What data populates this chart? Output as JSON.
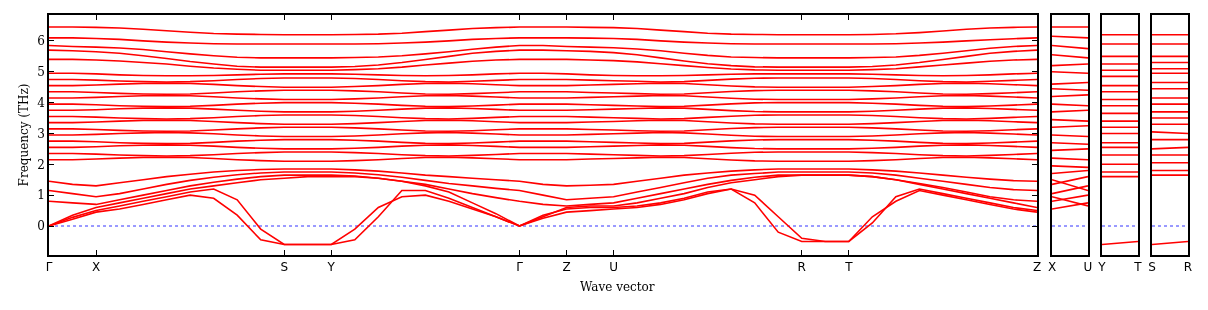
{
  "chart_data": [
    {
      "type": "line",
      "xlabel": "Wave vector",
      "ylabel": "Frequency (THz)",
      "categories": [
        "Γ",
        null,
        "X",
        null,
        null,
        null,
        null,
        null,
        null,
        null,
        "S",
        null,
        "Y",
        null,
        null,
        null,
        null,
        null,
        null,
        null,
        "Γ",
        null,
        "Z",
        null,
        "U",
        null,
        null,
        null,
        null,
        null,
        null,
        null,
        "R",
        null,
        "T",
        null,
        null,
        null,
        null,
        null,
        null,
        null,
        "Z"
      ],
      "ylim": [
        -0.94,
        6.84
      ],
      "yticks": [
        0,
        1,
        2,
        3,
        4,
        5,
        6
      ],
      "ref_lines": [
        {
          "axis": "y",
          "value": 0,
          "color": "#0000ff",
          "line_style": "dotted"
        }
      ],
      "series": [
        {
          "color": "#ff0000",
          "values": [
            0,
            0.22,
            0.45,
            0.55,
            0.7,
            0.85,
            1.0,
            0.9,
            0.35,
            -0.45,
            -0.6,
            -0.6,
            -0.6,
            -0.1,
            0.6,
            0.95,
            1.0,
            0.8,
            0.55,
            0.3,
            0,
            0.25,
            0.45,
            0.5,
            0.55,
            0.6,
            0.7,
            0.85,
            1.05,
            1.2,
            0.75,
            -0.2,
            -0.5,
            -0.5,
            -0.5,
            0.3,
            0.8,
            1.15,
            1.0,
            0.85,
            0.7,
            0.55,
            0.45
          ]
        },
        {
          "color": "#ff0000",
          "values": [
            0,
            0.28,
            0.5,
            0.65,
            0.8,
            0.95,
            1.1,
            1.2,
            0.85,
            -0.1,
            -0.6,
            -0.6,
            -0.6,
            -0.45,
            0.3,
            1.15,
            1.15,
            0.9,
            0.6,
            0.3,
            0,
            0.35,
            0.55,
            0.6,
            0.6,
            0.65,
            0.75,
            0.9,
            1.1,
            1.2,
            1.0,
            0.3,
            -0.4,
            -0.5,
            -0.5,
            0.1,
            0.95,
            1.2,
            1.05,
            0.9,
            0.75,
            0.6,
            0.5
          ]
        },
        {
          "color": "#ff0000",
          "values": [
            0,
            0.35,
            0.6,
            0.75,
            0.9,
            1.05,
            1.2,
            1.3,
            1.4,
            1.5,
            1.55,
            1.6,
            1.6,
            1.6,
            1.55,
            1.45,
            1.3,
            1.1,
            0.75,
            0.4,
            0,
            0.3,
            0.6,
            0.65,
            0.65,
            0.75,
            0.9,
            1.05,
            1.25,
            1.4,
            1.5,
            1.6,
            1.65,
            1.65,
            1.65,
            1.6,
            1.5,
            1.35,
            1.2,
            1.05,
            0.9,
            0.75,
            0.6
          ]
        },
        {
          "color": "#ff0000",
          "values": [
            6.45,
            6.45,
            6.44,
            6.42,
            6.38,
            6.33,
            6.28,
            6.24,
            6.22,
            6.21,
            6.2,
            6.2,
            6.2,
            6.21,
            6.22,
            6.25,
            6.3,
            6.35,
            6.4,
            6.43,
            6.45,
            6.45,
            6.45,
            6.44,
            6.43,
            6.4,
            6.35,
            6.3,
            6.25,
            6.22,
            6.21,
            6.2,
            6.2,
            6.2,
            6.2,
            6.21,
            6.23,
            6.27,
            6.32,
            6.38,
            6.42,
            6.44,
            6.45
          ]
        },
        {
          "color": "#ff0000",
          "values": [
            6.1,
            6.1,
            6.08,
            6.05,
            6.0,
            5.96,
            5.93,
            5.91,
            5.9,
            5.9,
            5.9,
            5.9,
            5.9,
            5.9,
            5.91,
            5.93,
            5.96,
            6.0,
            6.05,
            6.08,
            6.1,
            6.1,
            6.1,
            6.09,
            6.08,
            6.05,
            6.0,
            5.96,
            5.93,
            5.91,
            5.9,
            5.9,
            5.9,
            5.9,
            5.9,
            5.9,
            5.91,
            5.93,
            5.96,
            6.0,
            6.04,
            6.07,
            6.1
          ]
        },
        {
          "color": "#ff0000",
          "values": [
            5.85,
            5.82,
            5.8,
            5.77,
            5.72,
            5.65,
            5.58,
            5.52,
            5.47,
            5.45,
            5.45,
            5.45,
            5.45,
            5.46,
            5.48,
            5.52,
            5.58,
            5.65,
            5.73,
            5.8,
            5.85,
            5.85,
            5.82,
            5.8,
            5.78,
            5.74,
            5.68,
            5.6,
            5.53,
            5.48,
            5.46,
            5.45,
            5.45,
            5.45,
            5.45,
            5.46,
            5.48,
            5.53,
            5.6,
            5.68,
            5.76,
            5.82,
            5.85
          ]
        },
        {
          "color": "#ff0000",
          "values": [
            5.7,
            5.68,
            5.65,
            5.6,
            5.52,
            5.43,
            5.33,
            5.25,
            5.18,
            5.15,
            5.15,
            5.15,
            5.15,
            5.17,
            5.22,
            5.3,
            5.4,
            5.5,
            5.6,
            5.66,
            5.7,
            5.7,
            5.68,
            5.66,
            5.62,
            5.55,
            5.45,
            5.35,
            5.26,
            5.2,
            5.16,
            5.15,
            5.15,
            5.15,
            5.15,
            5.17,
            5.22,
            5.3,
            5.4,
            5.5,
            5.6,
            5.66,
            5.7
          ]
        },
        {
          "color": "#ff0000",
          "values": [
            5.4,
            5.4,
            5.38,
            5.35,
            5.3,
            5.25,
            5.18,
            5.12,
            5.08,
            5.05,
            5.05,
            5.05,
            5.05,
            5.07,
            5.1,
            5.15,
            5.22,
            5.28,
            5.34,
            5.38,
            5.4,
            5.4,
            5.4,
            5.38,
            5.36,
            5.32,
            5.26,
            5.2,
            5.14,
            5.09,
            5.06,
            5.05,
            5.05,
            5.05,
            5.05,
            5.07,
            5.1,
            5.16,
            5.22,
            5.28,
            5.34,
            5.38,
            5.4
          ]
        },
        {
          "color": "#ff0000",
          "values": [
            4.95,
            4.95,
            4.93,
            4.9,
            4.88,
            4.87,
            4.87,
            4.88,
            4.9,
            4.92,
            4.93,
            4.93,
            4.93,
            4.92,
            4.9,
            4.88,
            4.87,
            4.88,
            4.9,
            4.93,
            4.95,
            4.95,
            4.93,
            4.9,
            4.88,
            4.87,
            4.87,
            4.88,
            4.9,
            4.92,
            4.93,
            4.93,
            4.93,
            4.93,
            4.93,
            4.92,
            4.9,
            4.88,
            4.87,
            4.88,
            4.9,
            4.93,
            4.95
          ]
        },
        {
          "color": "#ff0000",
          "values": [
            4.75,
            4.75,
            4.73,
            4.7,
            4.68,
            4.67,
            4.68,
            4.71,
            4.75,
            4.78,
            4.8,
            4.8,
            4.8,
            4.78,
            4.75,
            4.71,
            4.68,
            4.67,
            4.69,
            4.72,
            4.75,
            4.75,
            4.75,
            4.73,
            4.71,
            4.69,
            4.67,
            4.68,
            4.72,
            4.76,
            4.79,
            4.8,
            4.8,
            4.8,
            4.8,
            4.78,
            4.75,
            4.71,
            4.68,
            4.67,
            4.69,
            4.72,
            4.75
          ]
        },
        {
          "color": "#ff0000",
          "values": [
            4.55,
            4.55,
            4.57,
            4.6,
            4.62,
            4.63,
            4.62,
            4.59,
            4.55,
            4.52,
            4.5,
            4.5,
            4.5,
            4.52,
            4.55,
            4.59,
            4.62,
            4.63,
            4.61,
            4.58,
            4.55,
            4.55,
            4.55,
            4.57,
            4.59,
            4.61,
            4.63,
            4.62,
            4.58,
            4.54,
            4.51,
            4.5,
            4.5,
            4.5,
            4.5,
            4.52,
            4.55,
            4.59,
            4.62,
            4.63,
            4.61,
            4.58,
            4.55
          ]
        },
        {
          "color": "#ff0000",
          "values": [
            4.35,
            4.35,
            4.33,
            4.3,
            4.28,
            4.27,
            4.28,
            4.31,
            4.35,
            4.38,
            4.4,
            4.4,
            4.4,
            4.38,
            4.35,
            4.31,
            4.28,
            4.27,
            4.29,
            4.32,
            4.35,
            4.35,
            4.35,
            4.33,
            4.31,
            4.29,
            4.27,
            4.28,
            4.32,
            4.36,
            4.39,
            4.4,
            4.4,
            4.4,
            4.4,
            4.38,
            4.35,
            4.31,
            4.28,
            4.27,
            4.29,
            4.32,
            4.35
          ]
        },
        {
          "color": "#ff0000",
          "values": [
            4.15,
            4.15,
            4.17,
            4.2,
            4.22,
            4.23,
            4.22,
            4.19,
            4.15,
            4.12,
            4.1,
            4.1,
            4.1,
            4.12,
            4.15,
            4.19,
            4.22,
            4.23,
            4.21,
            4.18,
            4.15,
            4.15,
            4.15,
            4.17,
            4.19,
            4.21,
            4.23,
            4.22,
            4.18,
            4.14,
            4.11,
            4.1,
            4.1,
            4.1,
            4.1,
            4.12,
            4.15,
            4.19,
            4.22,
            4.23,
            4.21,
            4.18,
            4.15
          ]
        },
        {
          "color": "#ff0000",
          "values": [
            3.95,
            3.95,
            3.93,
            3.9,
            3.88,
            3.87,
            3.88,
            3.91,
            3.95,
            3.98,
            4.0,
            4.0,
            4.0,
            3.98,
            3.95,
            3.91,
            3.88,
            3.87,
            3.89,
            3.92,
            3.95,
            3.95,
            3.95,
            3.93,
            3.91,
            3.89,
            3.87,
            3.88,
            3.92,
            3.96,
            3.99,
            4.0,
            4.0,
            4.0,
            4.0,
            3.98,
            3.95,
            3.91,
            3.88,
            3.87,
            3.89,
            3.92,
            3.95
          ]
        },
        {
          "color": "#ff0000",
          "values": [
            3.75,
            3.75,
            3.77,
            3.8,
            3.82,
            3.83,
            3.82,
            3.79,
            3.75,
            3.72,
            3.7,
            3.7,
            3.7,
            3.72,
            3.75,
            3.79,
            3.82,
            3.83,
            3.81,
            3.78,
            3.75,
            3.75,
            3.75,
            3.77,
            3.79,
            3.81,
            3.83,
            3.82,
            3.78,
            3.74,
            3.71,
            3.7,
            3.7,
            3.7,
            3.7,
            3.72,
            3.75,
            3.79,
            3.82,
            3.83,
            3.81,
            3.78,
            3.75
          ]
        },
        {
          "color": "#ff0000",
          "values": [
            3.55,
            3.55,
            3.53,
            3.5,
            3.48,
            3.47,
            3.48,
            3.51,
            3.55,
            3.58,
            3.6,
            3.6,
            3.6,
            3.58,
            3.55,
            3.51,
            3.48,
            3.47,
            3.49,
            3.52,
            3.55,
            3.55,
            3.55,
            3.53,
            3.51,
            3.49,
            3.47,
            3.48,
            3.52,
            3.56,
            3.59,
            3.6,
            3.6,
            3.6,
            3.6,
            3.58,
            3.55,
            3.51,
            3.48,
            3.47,
            3.49,
            3.52,
            3.55
          ]
        },
        {
          "color": "#ff0000",
          "values": [
            3.35,
            3.35,
            3.37,
            3.4,
            3.42,
            3.43,
            3.42,
            3.39,
            3.35,
            3.32,
            3.3,
            3.3,
            3.3,
            3.32,
            3.35,
            3.39,
            3.42,
            3.43,
            3.41,
            3.38,
            3.35,
            3.35,
            3.35,
            3.37,
            3.39,
            3.41,
            3.43,
            3.42,
            3.38,
            3.34,
            3.31,
            3.3,
            3.3,
            3.3,
            3.3,
            3.32,
            3.35,
            3.39,
            3.42,
            3.43,
            3.41,
            3.38,
            3.35
          ]
        },
        {
          "color": "#ff0000",
          "values": [
            3.15,
            3.15,
            3.13,
            3.1,
            3.08,
            3.07,
            3.08,
            3.11,
            3.15,
            3.18,
            3.2,
            3.2,
            3.2,
            3.18,
            3.15,
            3.11,
            3.08,
            3.07,
            3.09,
            3.12,
            3.15,
            3.15,
            3.15,
            3.13,
            3.11,
            3.09,
            3.07,
            3.08,
            3.12,
            3.16,
            3.19,
            3.2,
            3.2,
            3.2,
            3.2,
            3.18,
            3.15,
            3.11,
            3.08,
            3.07,
            3.09,
            3.12,
            3.15
          ]
        },
        {
          "color": "#ff0000",
          "values": [
            2.95,
            2.95,
            2.97,
            3.0,
            3.02,
            3.03,
            3.02,
            2.99,
            2.95,
            2.92,
            2.9,
            2.9,
            2.9,
            2.92,
            2.95,
            2.99,
            3.02,
            3.03,
            3.01,
            2.98,
            2.95,
            2.95,
            2.95,
            2.97,
            2.99,
            3.01,
            3.03,
            3.02,
            2.98,
            2.94,
            2.91,
            2.9,
            2.9,
            2.9,
            2.9,
            2.92,
            2.95,
            2.99,
            3.02,
            3.03,
            3.01,
            2.98,
            2.95
          ]
        },
        {
          "color": "#ff0000",
          "values": [
            2.75,
            2.75,
            2.73,
            2.7,
            2.68,
            2.67,
            2.68,
            2.71,
            2.75,
            2.78,
            2.8,
            2.8,
            2.8,
            2.78,
            2.75,
            2.71,
            2.68,
            2.67,
            2.69,
            2.72,
            2.75,
            2.75,
            2.75,
            2.73,
            2.71,
            2.69,
            2.67,
            2.68,
            2.72,
            2.76,
            2.79,
            2.8,
            2.8,
            2.8,
            2.8,
            2.78,
            2.75,
            2.71,
            2.68,
            2.67,
            2.69,
            2.72,
            2.75
          ]
        },
        {
          "color": "#ff0000",
          "values": [
            2.55,
            2.55,
            2.57,
            2.6,
            2.62,
            2.63,
            2.62,
            2.59,
            2.55,
            2.52,
            2.5,
            2.5,
            2.5,
            2.52,
            2.55,
            2.59,
            2.62,
            2.63,
            2.61,
            2.58,
            2.55,
            2.55,
            2.55,
            2.57,
            2.59,
            2.61,
            2.63,
            2.62,
            2.58,
            2.54,
            2.51,
            2.5,
            2.5,
            2.5,
            2.5,
            2.52,
            2.55,
            2.59,
            2.62,
            2.63,
            2.61,
            2.58,
            2.55
          ]
        },
        {
          "color": "#ff0000",
          "values": [
            2.35,
            2.35,
            2.33,
            2.3,
            2.28,
            2.27,
            2.28,
            2.31,
            2.35,
            2.38,
            2.4,
            2.4,
            2.4,
            2.38,
            2.35,
            2.31,
            2.28,
            2.27,
            2.29,
            2.32,
            2.35,
            2.35,
            2.35,
            2.33,
            2.31,
            2.29,
            2.27,
            2.28,
            2.32,
            2.36,
            2.39,
            2.4,
            2.4,
            2.4,
            2.4,
            2.38,
            2.35,
            2.31,
            2.28,
            2.27,
            2.29,
            2.32,
            2.35
          ]
        },
        {
          "color": "#ff0000",
          "values": [
            2.15,
            2.15,
            2.17,
            2.2,
            2.22,
            2.23,
            2.22,
            2.19,
            2.15,
            2.12,
            2.1,
            2.1,
            2.1,
            2.12,
            2.15,
            2.19,
            2.22,
            2.23,
            2.21,
            2.18,
            2.15,
            2.15,
            2.15,
            2.17,
            2.19,
            2.21,
            2.23,
            2.22,
            2.18,
            2.14,
            2.11,
            2.1,
            2.1,
            2.1,
            2.1,
            2.12,
            2.15,
            2.19,
            2.22,
            2.23,
            2.21,
            2.18,
            2.15
          ]
        },
        {
          "color": "#ff0000",
          "values": [
            1.45,
            1.35,
            1.3,
            1.4,
            1.5,
            1.6,
            1.68,
            1.75,
            1.8,
            1.83,
            1.85,
            1.85,
            1.85,
            1.82,
            1.78,
            1.72,
            1.65,
            1.6,
            1.55,
            1.5,
            1.45,
            1.35,
            1.3,
            1.32,
            1.35,
            1.45,
            1.55,
            1.65,
            1.72,
            1.78,
            1.82,
            1.85,
            1.85,
            1.85,
            1.85,
            1.82,
            1.78,
            1.72,
            1.65,
            1.58,
            1.52,
            1.47,
            1.45
          ]
        },
        {
          "color": "#ff0000",
          "values": [
            1.15,
            1.05,
            0.95,
            1.05,
            1.2,
            1.35,
            1.48,
            1.58,
            1.66,
            1.72,
            1.75,
            1.75,
            1.75,
            1.72,
            1.66,
            1.58,
            1.48,
            1.38,
            1.3,
            1.22,
            1.15,
            1.0,
            0.85,
            0.9,
            0.95,
            1.1,
            1.25,
            1.4,
            1.55,
            1.65,
            1.7,
            1.75,
            1.75,
            1.75,
            1.75,
            1.72,
            1.65,
            1.55,
            1.45,
            1.35,
            1.25,
            1.18,
            1.15
          ]
        },
        {
          "color": "#ff0000",
          "values": [
            0.8,
            0.75,
            0.7,
            0.85,
            1.0,
            1.15,
            1.3,
            1.42,
            1.52,
            1.6,
            1.65,
            1.65,
            1.65,
            1.62,
            1.55,
            1.45,
            1.35,
            1.2,
            1.05,
            0.92,
            0.8,
            0.7,
            0.65,
            0.7,
            0.75,
            0.9,
            1.05,
            1.2,
            1.35,
            1.48,
            1.58,
            1.65,
            1.65,
            1.65,
            1.65,
            1.6,
            1.5,
            1.38,
            1.25,
            1.1,
            0.95,
            0.85,
            0.8
          ]
        }
      ]
    },
    {
      "type": "line",
      "tick_labels": "x",
      "categories": [
        "X",
        "U"
      ],
      "ylim": [
        -0.94,
        6.84
      ],
      "yticks": [
        0,
        1,
        2,
        3,
        4,
        5,
        6
      ],
      "ref_lines": [
        {
          "axis": "y",
          "value": 0,
          "color": "#0000ff",
          "line_style": "dotted"
        }
      ],
      "series": [
        {
          "color": "#ff0000",
          "values": [
            6.45,
            6.45
          ]
        },
        {
          "color": "#ff0000",
          "values": [
            6.15,
            6.1
          ]
        },
        {
          "color": "#ff0000",
          "values": [
            5.85,
            5.75
          ]
        },
        {
          "color": "#ff0000",
          "values": [
            5.55,
            5.45
          ]
        },
        {
          "color": "#ff0000",
          "values": [
            5.2,
            5.25
          ]
        },
        {
          "color": "#ff0000",
          "values": [
            5.0,
            4.95
          ]
        },
        {
          "color": "#ff0000",
          "values": [
            4.6,
            4.65
          ]
        },
        {
          "color": "#ff0000",
          "values": [
            4.45,
            4.4
          ]
        },
        {
          "color": "#ff0000",
          "values": [
            4.2,
            4.25
          ]
        },
        {
          "color": "#ff0000",
          "values": [
            3.95,
            3.9
          ]
        },
        {
          "color": "#ff0000",
          "values": [
            3.7,
            3.75
          ]
        },
        {
          "color": "#ff0000",
          "values": [
            3.45,
            3.4
          ]
        },
        {
          "color": "#ff0000",
          "values": [
            3.2,
            3.25
          ]
        },
        {
          "color": "#ff0000",
          "values": [
            2.95,
            2.9
          ]
        },
        {
          "color": "#ff0000",
          "values": [
            2.7,
            2.65
          ]
        },
        {
          "color": "#ff0000",
          "values": [
            2.45,
            2.5
          ]
        },
        {
          "color": "#ff0000",
          "values": [
            2.2,
            2.15
          ]
        },
        {
          "color": "#ff0000",
          "values": [
            1.95,
            1.9
          ]
        },
        {
          "color": "#ff0000",
          "values": [
            1.7,
            1.8
          ]
        },
        {
          "color": "#ff0000",
          "values": [
            1.35,
            1.6
          ]
        },
        {
          "color": "#ff0000",
          "values": [
            1.05,
            1.3
          ]
        },
        {
          "color": "#ff0000",
          "values": [
            0.8,
            1.0
          ]
        },
        {
          "color": "#ff0000",
          "values": [
            0.55,
            0.75
          ]
        },
        {
          "color": "#ff0000",
          "values": [
            0.95,
            0.65
          ]
        },
        {
          "color": "#ff0000",
          "values": [
            1.5,
            1.15
          ]
        }
      ]
    },
    {
      "type": "line",
      "tick_labels": "x",
      "categories": [
        "Y",
        "T"
      ],
      "ylim": [
        -0.94,
        6.84
      ],
      "yticks": [
        0,
        1,
        2,
        3,
        4,
        5,
        6
      ],
      "ref_lines": [
        {
          "axis": "y",
          "value": 0,
          "color": "#0000ff",
          "line_style": "dotted"
        }
      ],
      "series": [
        {
          "color": "#ff0000",
          "values": [
            -0.6,
            -0.5
          ]
        },
        {
          "color": "#ff0000",
          "values": [
            1.6,
            1.6
          ]
        },
        {
          "color": "#ff0000",
          "values": [
            1.75,
            1.75
          ]
        },
        {
          "color": "#ff0000",
          "values": [
            2.0,
            2.0
          ]
        },
        {
          "color": "#ff0000",
          "values": [
            2.3,
            2.3
          ]
        },
        {
          "color": "#ff0000",
          "values": [
            2.55,
            2.55
          ]
        },
        {
          "color": "#ff0000",
          "values": [
            2.7,
            2.7
          ]
        },
        {
          "color": "#ff0000",
          "values": [
            3.0,
            3.0
          ]
        },
        {
          "color": "#ff0000",
          "values": [
            3.2,
            3.2
          ]
        },
        {
          "color": "#ff0000",
          "values": [
            3.4,
            3.4
          ]
        },
        {
          "color": "#ff0000",
          "values": [
            3.65,
            3.65
          ]
        },
        {
          "color": "#ff0000",
          "values": [
            3.9,
            3.9
          ]
        },
        {
          "color": "#ff0000",
          "values": [
            4.1,
            4.1
          ]
        },
        {
          "color": "#ff0000",
          "values": [
            4.35,
            4.35
          ]
        },
        {
          "color": "#ff0000",
          "values": [
            4.55,
            4.55
          ]
        },
        {
          "color": "#ff0000",
          "values": [
            4.85,
            4.85
          ]
        },
        {
          "color": "#ff0000",
          "values": [
            5.05,
            5.05
          ]
        },
        {
          "color": "#ff0000",
          "values": [
            5.25,
            5.25
          ]
        },
        {
          "color": "#ff0000",
          "values": [
            5.5,
            5.5
          ]
        },
        {
          "color": "#ff0000",
          "values": [
            5.9,
            5.9
          ]
        },
        {
          "color": "#ff0000",
          "values": [
            6.2,
            6.2
          ]
        }
      ]
    },
    {
      "type": "line",
      "tick_labels": "x",
      "categories": [
        "S",
        "R"
      ],
      "ylim": [
        -0.94,
        6.84
      ],
      "yticks": [
        0,
        1,
        2,
        3,
        4,
        5,
        6
      ],
      "ref_lines": [
        {
          "axis": "y",
          "value": 0,
          "color": "#0000ff",
          "line_style": "dotted"
        }
      ],
      "series": [
        {
          "color": "#ff0000",
          "values": [
            -0.6,
            -0.5
          ]
        },
        {
          "color": "#ff0000",
          "values": [
            1.65,
            1.65
          ]
        },
        {
          "color": "#ff0000",
          "values": [
            1.8,
            1.8
          ]
        },
        {
          "color": "#ff0000",
          "values": [
            2.05,
            2.05
          ]
        },
        {
          "color": "#ff0000",
          "values": [
            2.3,
            2.3
          ]
        },
        {
          "color": "#ff0000",
          "values": [
            2.5,
            2.55
          ]
        },
        {
          "color": "#ff0000",
          "values": [
            2.8,
            2.8
          ]
        },
        {
          "color": "#ff0000",
          "values": [
            3.05,
            3.0
          ]
        },
        {
          "color": "#ff0000",
          "values": [
            3.3,
            3.3
          ]
        },
        {
          "color": "#ff0000",
          "values": [
            3.5,
            3.5
          ]
        },
        {
          "color": "#ff0000",
          "values": [
            3.7,
            3.7
          ]
        },
        {
          "color": "#ff0000",
          "values": [
            3.95,
            3.95
          ]
        },
        {
          "color": "#ff0000",
          "values": [
            4.15,
            4.15
          ]
        },
        {
          "color": "#ff0000",
          "values": [
            4.45,
            4.45
          ]
        },
        {
          "color": "#ff0000",
          "values": [
            4.65,
            4.65
          ]
        },
        {
          "color": "#ff0000",
          "values": [
            4.95,
            4.95
          ]
        },
        {
          "color": "#ff0000",
          "values": [
            5.1,
            5.1
          ]
        },
        {
          "color": "#ff0000",
          "values": [
            5.3,
            5.3
          ]
        },
        {
          "color": "#ff0000",
          "values": [
            5.5,
            5.5
          ]
        },
        {
          "color": "#ff0000",
          "values": [
            5.9,
            5.9
          ]
        },
        {
          "color": "#ff0000",
          "values": [
            6.2,
            6.2
          ]
        }
      ]
    }
  ]
}
